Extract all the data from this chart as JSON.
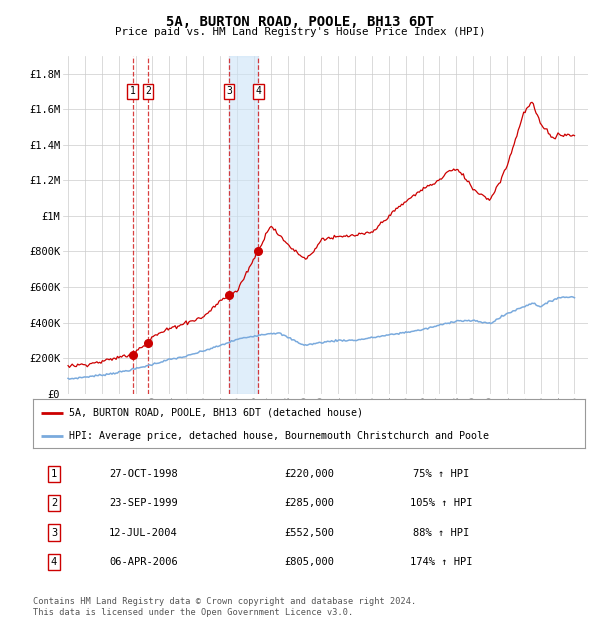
{
  "title": "5A, BURTON ROAD, POOLE, BH13 6DT",
  "subtitle": "Price paid vs. HM Land Registry's House Price Index (HPI)",
  "ylim": [
    0,
    1900000
  ],
  "xlim_start": 1994.7,
  "xlim_end": 2025.8,
  "hpi_color": "#7aaadd",
  "price_color": "#cc0000",
  "background_color": "#ffffff",
  "grid_color": "#cccccc",
  "transactions": [
    {
      "label": "1",
      "date_dec": 1998.82,
      "price": 220000,
      "pct": "75%",
      "date_str": "27-OCT-1998"
    },
    {
      "label": "2",
      "date_dec": 1999.73,
      "price": 285000,
      "pct": "105%",
      "date_str": "23-SEP-1999"
    },
    {
      "label": "3",
      "date_dec": 2004.53,
      "price": 552500,
      "pct": "88%",
      "date_str": "12-JUL-2004"
    },
    {
      "label": "4",
      "date_dec": 2006.26,
      "price": 805000,
      "pct": "174%",
      "date_str": "06-APR-2006"
    }
  ],
  "legend_line1": "5A, BURTON ROAD, POOLE, BH13 6DT (detached house)",
  "legend_line2": "HPI: Average price, detached house, Bournemouth Christchurch and Poole",
  "footer": "Contains HM Land Registry data © Crown copyright and database right 2024.\nThis data is licensed under the Open Government Licence v3.0.",
  "ytick_labels": [
    "£0",
    "£200K",
    "£400K",
    "£600K",
    "£800K",
    "£1M",
    "£1.2M",
    "£1.4M",
    "£1.6M",
    "£1.8M"
  ],
  "ytick_values": [
    0,
    200000,
    400000,
    600000,
    800000,
    1000000,
    1200000,
    1400000,
    1600000,
    1800000
  ],
  "hpi_anchors_x": [
    1995,
    1997,
    1998,
    1999,
    2000,
    2001,
    2002,
    2003,
    2004,
    2005,
    2006,
    2007,
    2007.5,
    2009,
    2010,
    2011,
    2012,
    2013,
    2014,
    2015,
    2016,
    2017,
    2018,
    2019,
    2020,
    2021,
    2022,
    2022.5,
    2023,
    2024,
    2025
  ],
  "hpi_anchors_y": [
    82000,
    105000,
    120000,
    140000,
    165000,
    192000,
    210000,
    240000,
    270000,
    305000,
    325000,
    340000,
    340000,
    272000,
    288000,
    300000,
    300000,
    315000,
    330000,
    345000,
    360000,
    385000,
    410000,
    410000,
    395000,
    450000,
    490000,
    510000,
    490000,
    540000,
    545000
  ],
  "price_anchors_x": [
    1995,
    1996,
    1997,
    1998.0,
    1998.82,
    1999.0,
    1999.73,
    2000,
    2001,
    2002,
    2003,
    2004.0,
    2004.53,
    2005.0,
    2006.26,
    2007.0,
    2007.5,
    2008.0,
    2009.0,
    2009.5,
    2010,
    2011,
    2012,
    2013,
    2014,
    2015,
    2016,
    2017,
    2017.5,
    2018,
    2018.5,
    2019,
    2020,
    2020.5,
    2021,
    2022,
    2022.5,
    2023,
    2023.3,
    2023.8,
    2024,
    2025
  ],
  "price_anchors_y": [
    155000,
    165000,
    180000,
    205000,
    220000,
    245000,
    285000,
    320000,
    365000,
    400000,
    430000,
    520000,
    552500,
    575000,
    805000,
    950000,
    890000,
    840000,
    760000,
    790000,
    870000,
    880000,
    890000,
    905000,
    1000000,
    1080000,
    1150000,
    1200000,
    1250000,
    1260000,
    1220000,
    1150000,
    1090000,
    1180000,
    1280000,
    1580000,
    1640000,
    1510000,
    1490000,
    1430000,
    1460000,
    1450000
  ]
}
